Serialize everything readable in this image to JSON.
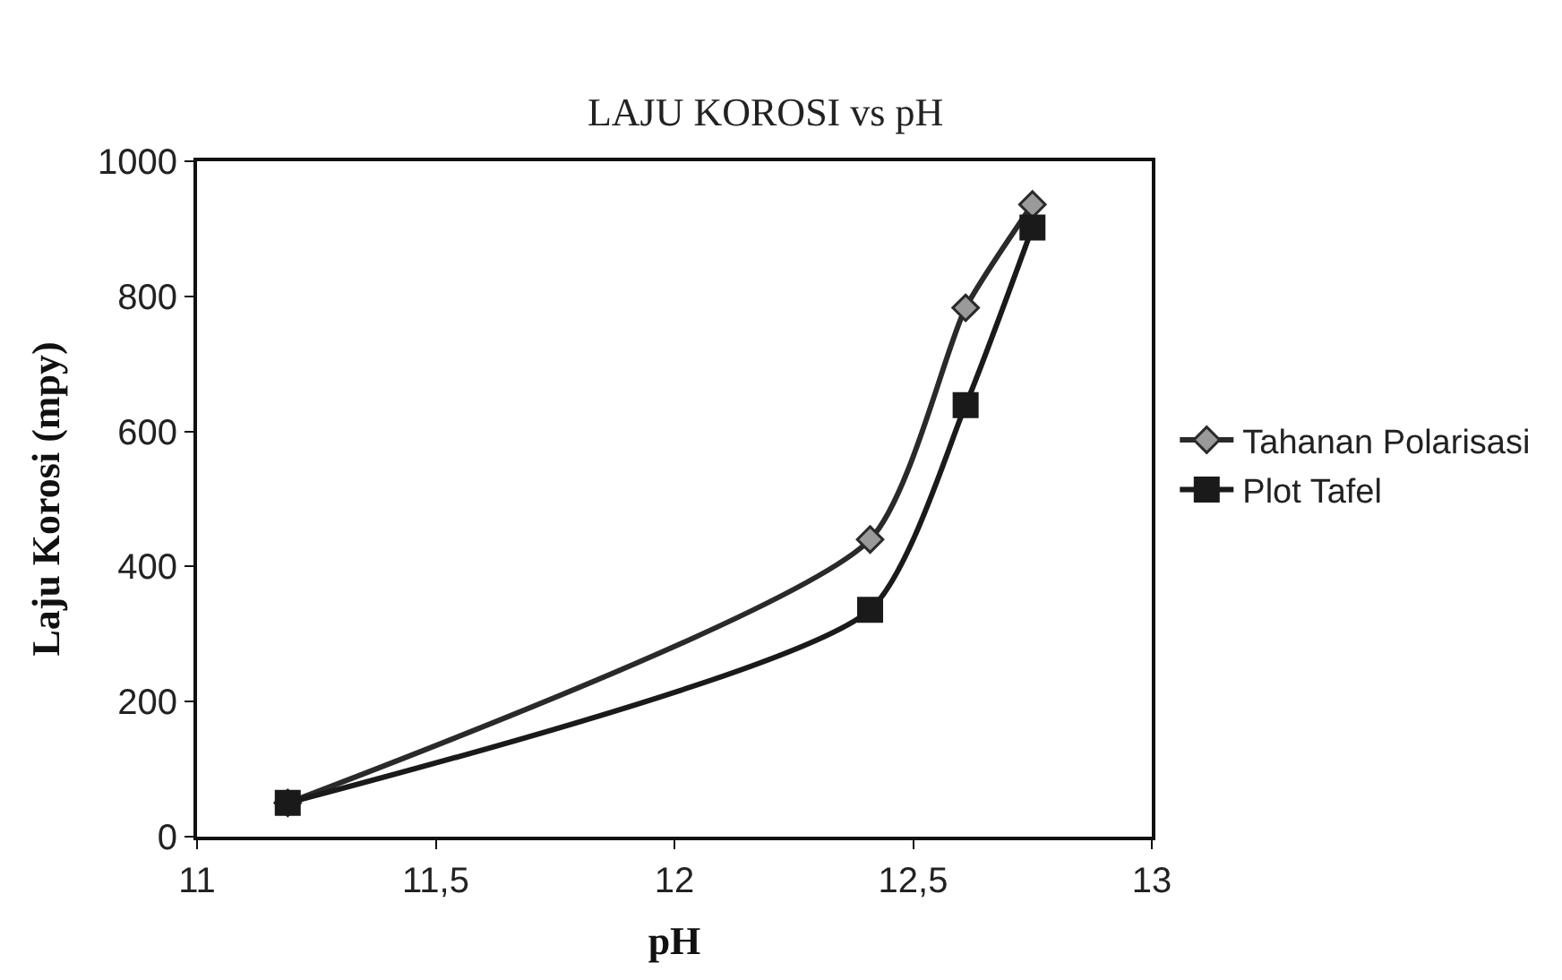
{
  "chart_data": {
    "type": "line",
    "title": "LAJU KOROSI vs pH",
    "xlabel": "pH",
    "ylabel": "Laju Korosi (mpy)",
    "series": [
      {
        "name": "Tahanan Polarisasi",
        "color": "#2a2a2a",
        "marker": "diamond",
        "x": [
          11.19,
          12.41,
          12.61,
          12.75
        ],
        "values": [
          50,
          440,
          783,
          936
        ]
      },
      {
        "name": "Plot Tafel",
        "color": "#1a1a1a",
        "marker": "square",
        "x": [
          11.19,
          12.41,
          12.61,
          12.75
        ],
        "values": [
          50,
          336,
          639,
          902
        ]
      }
    ],
    "xlim": [
      11,
      13
    ],
    "xticks": [
      11,
      {
        "value": 11.5,
        "label": "11,5"
      },
      12,
      {
        "value": 12.5,
        "label": "12,5"
      },
      13
    ],
    "ylim": [
      0,
      1000
    ],
    "yticks": [
      0,
      200,
      400,
      600,
      800,
      1000
    ],
    "legend": "right",
    "line_style": "solid"
  }
}
